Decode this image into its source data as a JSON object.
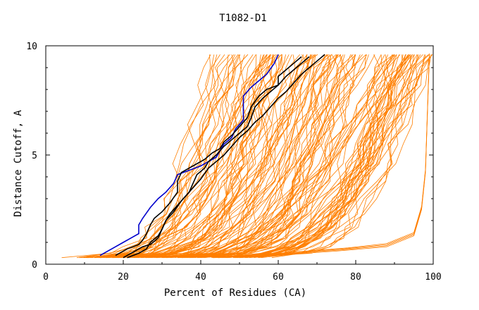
{
  "chart_data": {
    "type": "line",
    "title": "T1082-D1",
    "xlabel": "Percent of Residues (CA)",
    "ylabel": "Distance Cutoff, A",
    "xlim": [
      0,
      100
    ],
    "ylim": [
      0,
      10
    ],
    "x_ticks": [
      "0",
      "20",
      "40",
      "60",
      "80",
      "100"
    ],
    "y_ticks": [
      "0",
      "5",
      "10"
    ],
    "background_curve_count": 140,
    "colors": {
      "background": "#ff7f00",
      "highlight": "#0000cc",
      "reference": "#000000"
    },
    "series": [
      {
        "name": "blue",
        "color": "#0000cc",
        "points": [
          [
            14,
            0.4
          ],
          [
            17,
            0.7
          ],
          [
            20,
            1.0
          ],
          [
            22,
            1.2
          ],
          [
            24,
            1.4
          ],
          [
            24,
            1.8
          ],
          [
            25,
            2.1
          ],
          [
            27,
            2.6
          ],
          [
            29,
            3.0
          ],
          [
            31,
            3.3
          ],
          [
            33,
            3.7
          ],
          [
            34,
            4.1
          ],
          [
            37,
            4.3
          ],
          [
            40,
            4.5
          ],
          [
            42,
            4.7
          ],
          [
            44,
            4.9
          ],
          [
            45,
            5.2
          ],
          [
            46,
            5.5
          ],
          [
            48,
            5.8
          ],
          [
            49,
            6.2
          ],
          [
            51,
            6.6
          ],
          [
            51,
            7.2
          ],
          [
            51,
            7.7
          ],
          [
            53,
            8.1
          ],
          [
            55,
            8.4
          ],
          [
            57,
            8.7
          ],
          [
            59,
            9.2
          ],
          [
            60,
            9.6
          ]
        ]
      },
      {
        "name": "black-1",
        "color": "#000000",
        "points": [
          [
            18,
            0.4
          ],
          [
            21,
            0.7
          ],
          [
            24,
            0.9
          ],
          [
            25,
            1.1
          ],
          [
            26,
            1.4
          ],
          [
            27,
            1.8
          ],
          [
            28,
            2.1
          ],
          [
            30,
            2.4
          ],
          [
            32,
            2.8
          ],
          [
            34,
            3.3
          ],
          [
            34,
            3.8
          ],
          [
            35,
            4.2
          ],
          [
            38,
            4.5
          ],
          [
            41,
            4.8
          ],
          [
            43,
            5.1
          ],
          [
            45,
            5.3
          ],
          [
            46,
            5.6
          ],
          [
            48,
            5.9
          ],
          [
            50,
            6.3
          ],
          [
            52,
            6.7
          ],
          [
            53,
            7.2
          ],
          [
            55,
            7.7
          ],
          [
            57,
            8.0
          ],
          [
            60,
            8.2
          ],
          [
            60,
            8.6
          ],
          [
            62,
            8.9
          ],
          [
            64,
            9.2
          ],
          [
            66,
            9.5
          ]
        ]
      },
      {
        "name": "black-2",
        "color": "#000000",
        "points": [
          [
            21,
            0.3
          ],
          [
            24,
            0.5
          ],
          [
            26,
            0.7
          ],
          [
            27,
            1.0
          ],
          [
            29,
            1.3
          ],
          [
            30,
            1.6
          ],
          [
            31,
            2.0
          ],
          [
            33,
            2.4
          ],
          [
            35,
            2.9
          ],
          [
            37,
            3.3
          ],
          [
            38,
            3.7
          ],
          [
            39,
            4.1
          ],
          [
            41,
            4.4
          ],
          [
            42,
            4.7
          ],
          [
            44,
            5.0
          ],
          [
            46,
            5.4
          ],
          [
            48,
            5.7
          ],
          [
            50,
            6.0
          ],
          [
            52,
            6.3
          ],
          [
            53,
            6.7
          ],
          [
            54,
            7.2
          ],
          [
            56,
            7.6
          ],
          [
            58,
            7.9
          ],
          [
            60,
            8.2
          ],
          [
            62,
            8.6
          ],
          [
            64,
            8.9
          ],
          [
            66,
            9.2
          ],
          [
            68,
            9.5
          ]
        ]
      },
      {
        "name": "black-3",
        "color": "#000000",
        "points": [
          [
            20,
            0.3
          ],
          [
            23,
            0.6
          ],
          [
            25,
            0.8
          ],
          [
            27,
            0.9
          ],
          [
            29,
            1.2
          ],
          [
            30,
            1.6
          ],
          [
            31,
            2.0
          ],
          [
            32,
            2.3
          ],
          [
            34,
            2.7
          ],
          [
            36,
            3.1
          ],
          [
            38,
            3.5
          ],
          [
            40,
            3.9
          ],
          [
            42,
            4.4
          ],
          [
            44,
            4.7
          ],
          [
            46,
            5.0
          ],
          [
            48,
            5.4
          ],
          [
            50,
            5.8
          ],
          [
            52,
            6.1
          ],
          [
            54,
            6.5
          ],
          [
            56,
            6.8
          ],
          [
            58,
            7.2
          ],
          [
            60,
            7.6
          ],
          [
            62,
            7.9
          ],
          [
            64,
            8.3
          ],
          [
            66,
            8.7
          ],
          [
            68,
            9.0
          ],
          [
            70,
            9.3
          ],
          [
            72,
            9.6
          ]
        ]
      }
    ]
  }
}
